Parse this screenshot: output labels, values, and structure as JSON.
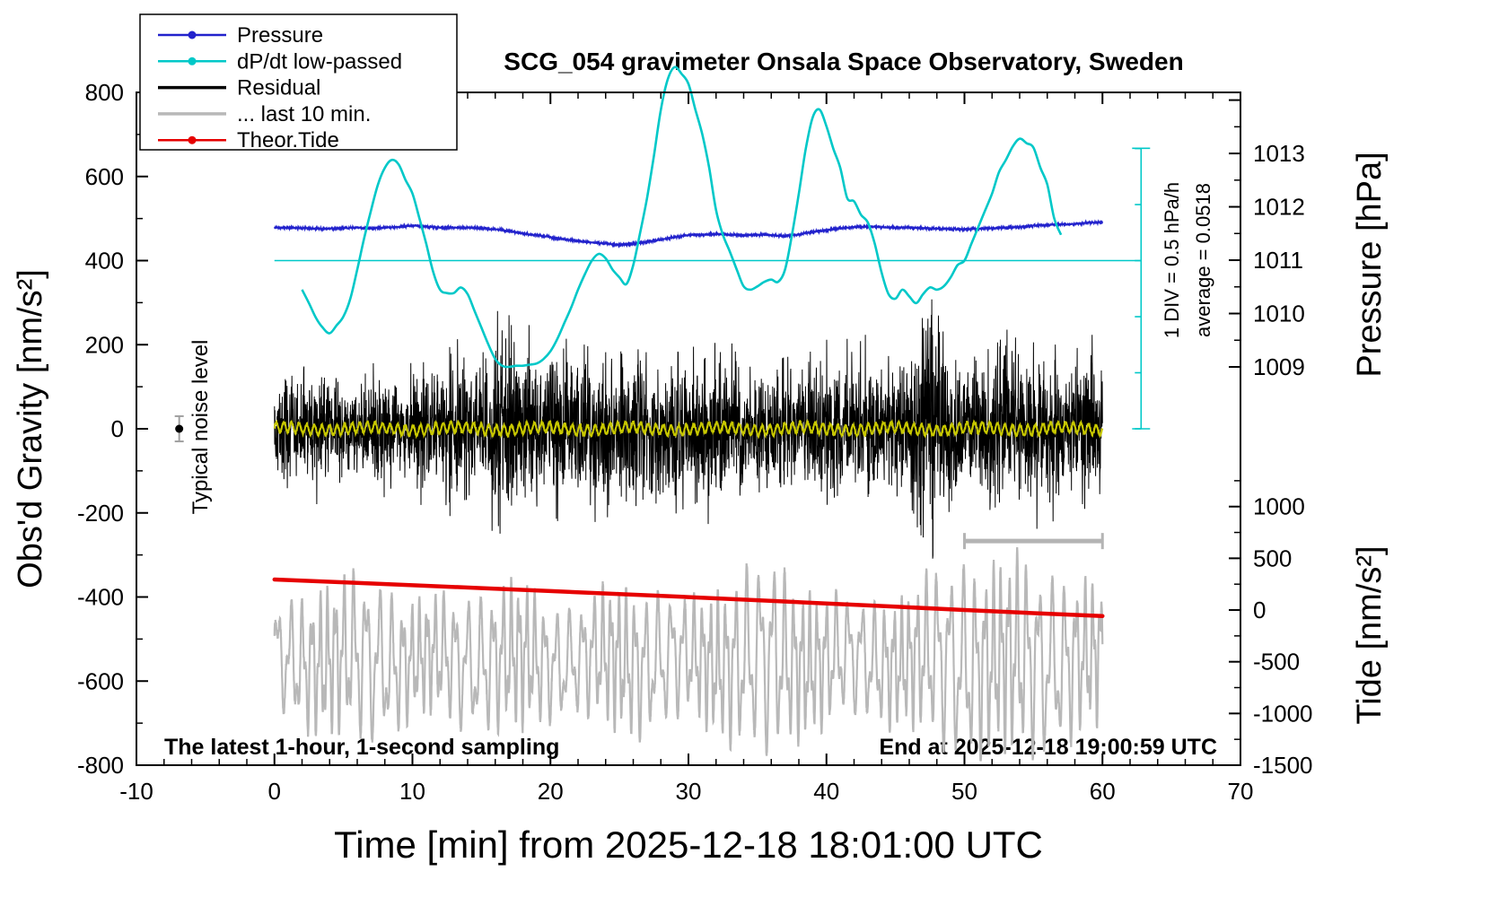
{
  "chart_data": {
    "type": "line",
    "title": "SCG_054 gravimeter Onsala Space Observatory, Sweden",
    "xlabel": "Time [min] from 2025-12-18 18:01:00 UTC",
    "ylabel_left": "Obs'd Gravity [nm/s²]",
    "ylabel_right_top": "Pressure [hPa]",
    "ylabel_right_bottom": "Tide [nm/s²]",
    "annotations": {
      "noise_label": "Typical noise level",
      "div_label": "1 DIV = 0.5 hPa/h",
      "average_label": "average = 0.0518",
      "sampling_label": "The latest 1-hour, 1-second sampling",
      "end_label": "End at 2025-12-18 19:00:59 UTC"
    },
    "x_axis": {
      "min": -10,
      "max": 70,
      "major_ticks": [
        -10,
        0,
        10,
        20,
        30,
        40,
        50,
        60,
        70
      ],
      "minor_step": 2
    },
    "y_axis_gravity": {
      "min": -800,
      "max": 800,
      "major_ticks": [
        -800,
        -600,
        -400,
        -200,
        0,
        200,
        400,
        600,
        800
      ],
      "minor_step": 100
    },
    "y_axis_pressure": {
      "ticks": [
        1013,
        1012,
        1011,
        1010,
        1009
      ],
      "minor_ticks": [
        1013.5,
        1012.5,
        1011.5,
        1010.5,
        1009.5
      ],
      "extra_major": [
        1014
      ]
    },
    "y_axis_tide": {
      "ticks": [
        1000,
        500,
        0,
        -500,
        -1000,
        -1500
      ],
      "minor_ticks": [
        1250,
        750,
        250,
        -250,
        -750,
        -1250
      ]
    },
    "calibration": {
      "pressure": {
        "hPa_ref": 1011,
        "gravity_ref": 401,
        "gravity_per_hPa": 126.9
      },
      "tide": {
        "tide_ref": 0,
        "gravity_ref": -431,
        "gravity_per_tide_unit": 0.246
      },
      "dpdt": {
        "zero_gravity": 400,
        "gravity_per_hPa_per_h": 266,
        "div_gravity": 133.3,
        "scale_top_gravity": 667,
        "line_end_x": 62.8
      },
      "last10_center_gravity": -550
    },
    "legend": [
      {
        "label": "Pressure",
        "color": "#2222cc",
        "marker": "dot"
      },
      {
        "label": "dP/dt low-passed",
        "color": "#00c8c8",
        "marker": "dot"
      },
      {
        "label": "Residual",
        "color": "#000000",
        "marker": "line"
      },
      {
        "label": "... last 10 min.",
        "color": "#b8b8b8",
        "marker": "line"
      },
      {
        "label": "Theor.Tide",
        "color": "#e60000",
        "marker": "dot"
      }
    ],
    "series": {
      "pressure": {
        "unit": "hPa",
        "x_start": 0,
        "x_step": 1,
        "color": "#2222cc",
        "values": [
          1011.61,
          1011.61,
          1011.6,
          1011.59,
          1011.59,
          1011.6,
          1011.61,
          1011.6,
          1011.61,
          1011.62,
          1011.65,
          1011.63,
          1011.61,
          1011.61,
          1011.61,
          1011.6,
          1011.58,
          1011.54,
          1011.5,
          1011.47,
          1011.43,
          1011.39,
          1011.36,
          1011.33,
          1011.31,
          1011.29,
          1011.31,
          1011.34,
          1011.39,
          1011.43,
          1011.47,
          1011.48,
          1011.49,
          1011.48,
          1011.47,
          1011.48,
          1011.47,
          1011.45,
          1011.48,
          1011.53,
          1011.56,
          1011.6,
          1011.62,
          1011.63,
          1011.62,
          1011.61,
          1011.61,
          1011.6,
          1011.59,
          1011.58,
          1011.58,
          1011.59,
          1011.6,
          1011.61,
          1011.62,
          1011.65,
          1011.66,
          1011.67,
          1011.68,
          1011.7,
          1011.71
        ]
      },
      "dpdt_lowpassed": {
        "unit": "hPa/h",
        "x_start": 2,
        "x_step": 0.5,
        "color": "#00c8c8",
        "values": [
          -0.26,
          -0.38,
          -0.51,
          -0.6,
          -0.65,
          -0.58,
          -0.5,
          -0.34,
          -0.08,
          0.2,
          0.45,
          0.68,
          0.83,
          0.9,
          0.86,
          0.72,
          0.6,
          0.38,
          0.15,
          -0.1,
          -0.26,
          -0.29,
          -0.29,
          -0.24,
          -0.3,
          -0.45,
          -0.6,
          -0.75,
          -0.88,
          -0.94,
          -0.95,
          -0.94,
          -0.94,
          -0.93,
          -0.92,
          -0.88,
          -0.81,
          -0.7,
          -0.56,
          -0.42,
          -0.26,
          -0.12,
          0.0,
          0.06,
          0.02,
          -0.08,
          -0.15,
          -0.21,
          -0.04,
          0.25,
          0.56,
          0.94,
          1.35,
          1.62,
          1.73,
          1.67,
          1.58,
          1.35,
          1.13,
          0.83,
          0.45,
          0.23,
          0.08,
          -0.08,
          -0.23,
          -0.26,
          -0.23,
          -0.19,
          -0.17,
          -0.19,
          -0.08,
          0.23,
          0.6,
          1.0,
          1.28,
          1.35,
          1.2,
          1.0,
          0.83,
          0.56,
          0.53,
          0.41,
          0.34,
          0.15,
          -0.11,
          -0.3,
          -0.34,
          -0.26,
          -0.32,
          -0.38,
          -0.3,
          -0.24,
          -0.26,
          -0.23,
          -0.15,
          -0.04,
          0.0,
          0.15,
          0.3,
          0.45,
          0.6,
          0.79,
          0.9,
          1.02,
          1.09,
          1.05,
          1.01,
          0.83,
          0.68,
          0.38,
          0.23
        ]
      },
      "residual": {
        "unit": "nm/s²",
        "x_start": 0,
        "x_step": 1,
        "color": "#000000",
        "note": "1-second samples around zero; per-minute amplitude envelope",
        "envelope": [
          110,
          120,
          110,
          130,
          115,
          100,
          110,
          120,
          110,
          100,
          130,
          140,
          130,
          210,
          160,
          140,
          230,
          250,
          180,
          160,
          150,
          180,
          160,
          200,
          180,
          150,
          160,
          140,
          150,
          160,
          150,
          170,
          180,
          150,
          140,
          130,
          140,
          150,
          130,
          160,
          180,
          160,
          150,
          170,
          150,
          140,
          160,
          250,
          270,
          180,
          150,
          160,
          170,
          180,
          160,
          170,
          180,
          160,
          150,
          170,
          160
        ]
      },
      "residual_lowpassed": {
        "color": "#c8c800",
        "amplitude": 12,
        "period_min": 0.55
      },
      "residual_last10min": {
        "color": "#b8b8b8",
        "x_start": 0,
        "x_step": 2,
        "note": "last 10 minutes of residual, expanded to full width, offset to -550 on gravity axis",
        "envelope": [
          120,
          150,
          170,
          190,
          170,
          130,
          140,
          150,
          160,
          170,
          130,
          120,
          160,
          170,
          150,
          130,
          160,
          200,
          220,
          170,
          150,
          130,
          140,
          150,
          200,
          220,
          210,
          230,
          200,
          180,
          160
        ]
      },
      "theor_tide": {
        "unit": "nm/s² (tide axis)",
        "x_start": 0,
        "x_step": 5,
        "color": "#e60000",
        "values": [
          295,
          268,
          240,
          212,
          183,
          154,
          125,
          95,
          64,
          32,
          0,
          -30,
          -58
        ]
      }
    },
    "markers": {
      "noise_level": {
        "x": -6.9,
        "value": 0,
        "error": 30,
        "color": "#a0a0a0"
      },
      "last10_window_bar": {
        "x_start": 50,
        "x_end": 60,
        "gravity": -267,
        "color": "#b4b4b4"
      }
    }
  }
}
